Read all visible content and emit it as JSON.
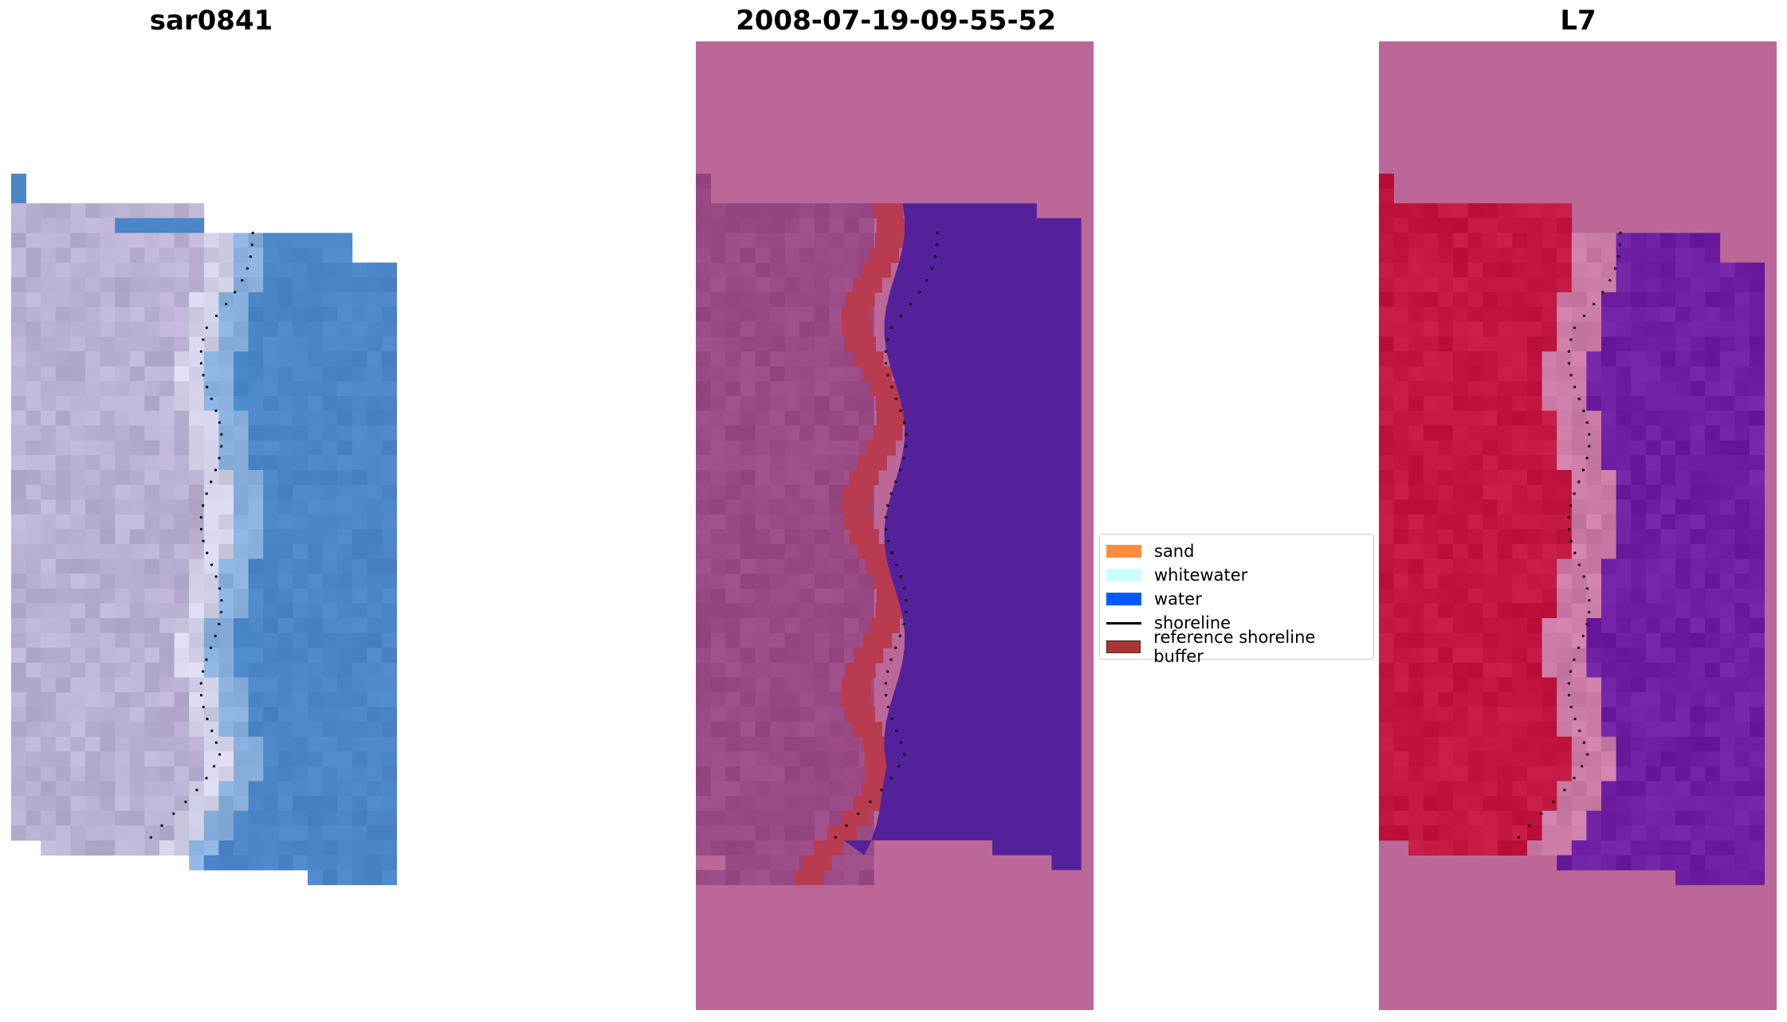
{
  "titles": {
    "left": "sar0841",
    "middle": "2008-07-19-09-55-52",
    "right": "L7"
  },
  "legend": [
    {
      "label": "sand",
      "color": "#ff8c3f",
      "kind": "patch"
    },
    {
      "label": "whitewater",
      "color": "#ccffff",
      "kind": "patch"
    },
    {
      "label": "water",
      "color": "#005aff",
      "kind": "patch"
    },
    {
      "label": "shoreline",
      "color": "#000000",
      "kind": "line"
    },
    {
      "label": "reference shoreline buffer",
      "color": "#a83434",
      "kind": "patch",
      "edge": "#5a1a1a"
    }
  ],
  "colors": {
    "rgb_sand": "#b9b0d2",
    "rgb_whitewater": "#e8eefc",
    "rgb_water": "#4a86c8",
    "class_background": "#bb6899",
    "class_land": "#9a4a85",
    "class_buffer": "#b83b50",
    "class_water": "#53229a",
    "index_background": "#bb6899",
    "index_land": "#c0163f",
    "index_transition": "#c97aa5",
    "index_water": "#6e1ea0",
    "shoreline": "#000000"
  }
}
